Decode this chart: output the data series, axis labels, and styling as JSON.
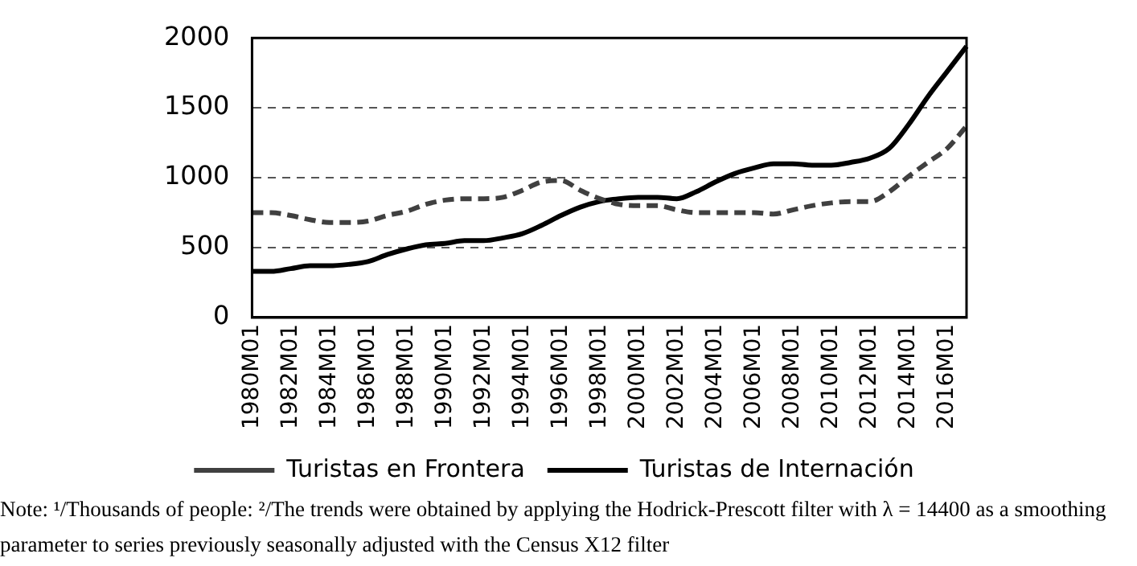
{
  "chart_data": {
    "type": "line",
    "categories": [
      "1980M01",
      null,
      "1982M01",
      null,
      "1984M01",
      null,
      "1986M01",
      null,
      "1988M01",
      null,
      "1990M01",
      null,
      "1992M01",
      null,
      "1994M01",
      null,
      "1996M01",
      null,
      "1998M01",
      null,
      "2000M01",
      null,
      "2002M01",
      null,
      "2004M01",
      null,
      "2006M01",
      null,
      "2008M01",
      null,
      "2010M01",
      null,
      "2012M01",
      null,
      "2014M01",
      null,
      "2016M01",
      null
    ],
    "series": [
      {
        "name": "Turistas en Frontera",
        "color": "#404040",
        "line_style": "dashed",
        "values": [
          750,
          750,
          730,
          700,
          680,
          680,
          690,
          730,
          760,
          810,
          840,
          850,
          850,
          860,
          910,
          970,
          980,
          910,
          850,
          810,
          800,
          800,
          770,
          750,
          750,
          750,
          750,
          740,
          770,
          800,
          820,
          830,
          830,
          900,
          1010,
          1110,
          1210,
          1370
        ]
      },
      {
        "name": "Turistas de Internación",
        "color": "#000000",
        "line_style": "solid",
        "values": [
          330,
          330,
          350,
          370,
          370,
          380,
          400,
          450,
          490,
          520,
          530,
          550,
          550,
          570,
          600,
          660,
          730,
          790,
          830,
          850,
          860,
          860,
          850,
          900,
          970,
          1030,
          1070,
          1100,
          1100,
          1090,
          1090,
          1110,
          1140,
          1210,
          1380,
          1580,
          1760,
          1940
        ]
      }
    ],
    "ylim": [
      0,
      2000
    ],
    "yticks": [
      0,
      500,
      1000,
      1500,
      2000
    ],
    "grid": "y",
    "legend": "bottom",
    "marker": "none",
    "annotations": [
      "Note: ¹/Thousands of people: ²/The trends were obtained by applying the Hodrick-Prescott filter with λ = 14400 as a smoothing parameter to series previously seasonally adjusted with the Census X12 filter"
    ]
  }
}
